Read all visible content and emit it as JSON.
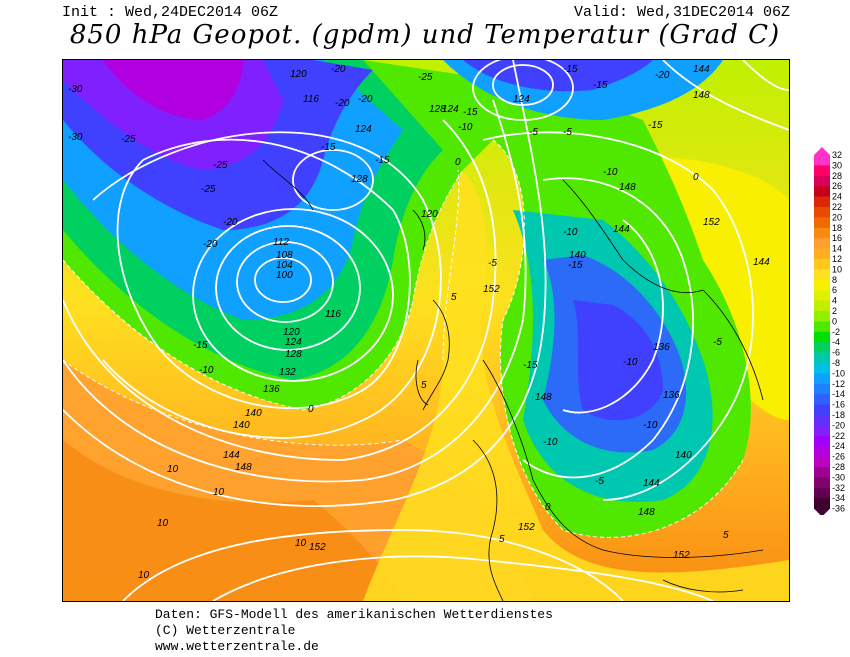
{
  "header": {
    "init": "Init : Wed,24DEC2014 06Z",
    "valid": "Valid: Wed,31DEC2014 06Z",
    "title": "850 hPa Geopot. (gpdm) und Temperatur (Grad C)"
  },
  "footer": {
    "line1": "Daten: GFS-Modell des amerikanischen Wetterdienstes",
    "line2": "(C) Wetterzentrale",
    "line3": "www.wetterzentrale.de"
  },
  "legend": {
    "levels": [
      "32",
      "30",
      "28",
      "26",
      "24",
      "22",
      "20",
      "18",
      "16",
      "14",
      "12",
      "10",
      "8",
      "6",
      "4",
      "2",
      "0",
      "-2",
      "-4",
      "-6",
      "-8",
      "-10",
      "-12",
      "-14",
      "-16",
      "-18",
      "-20",
      "-22",
      "-24",
      "-26",
      "-28",
      "-30",
      "-32",
      "-34",
      "-36"
    ],
    "colors": [
      "#ff33cc",
      "#ff0066",
      "#d9005a",
      "#c8001e",
      "#dc2800",
      "#e84a00",
      "#f06a00",
      "#f88a10",
      "#ffa030",
      "#ffb020",
      "#ffc818",
      "#ffe020",
      "#f8f000",
      "#e0f000",
      "#c0f000",
      "#90f000",
      "#50e800",
      "#00e000",
      "#00d060",
      "#00c8b0",
      "#00c0e8",
      "#10a0ff",
      "#2080ff",
      "#3060ff",
      "#4040ff",
      "#6030ff",
      "#8020ff",
      "#a000ff",
      "#b000e0",
      "#c000c0",
      "#a00090",
      "#800070",
      "#600050",
      "#400030"
    ]
  },
  "geopotential_labels": [
    "100",
    "104",
    "108",
    "112",
    "116",
    "116",
    "120",
    "120",
    "120",
    "124",
    "124",
    "124",
    "124",
    "128",
    "128",
    "128",
    "132",
    "136",
    "136",
    "136",
    "140",
    "140",
    "140",
    "140",
    "144",
    "144",
    "144",
    "144",
    "144",
    "148",
    "148",
    "148",
    "148",
    "148",
    "152",
    "152",
    "152",
    "152",
    "152"
  ],
  "temperature_labels": [
    "-30",
    "-30",
    "-25",
    "-25",
    "-25",
    "-25",
    "-20",
    "-20",
    "-20",
    "-20",
    "-20",
    "-20",
    "-15",
    "-15",
    "-15",
    "-15",
    "-15",
    "-15",
    "-15",
    "-15",
    "-15",
    "-10",
    "-10",
    "-10",
    "-10",
    "-10",
    "-10",
    "-10",
    "-5",
    "-5",
    "-5",
    "-5",
    "-5",
    "0",
    "0",
    "0",
    "0",
    "5",
    "5",
    "5",
    "5",
    "10",
    "10",
    "10",
    "10",
    "10"
  ]
}
